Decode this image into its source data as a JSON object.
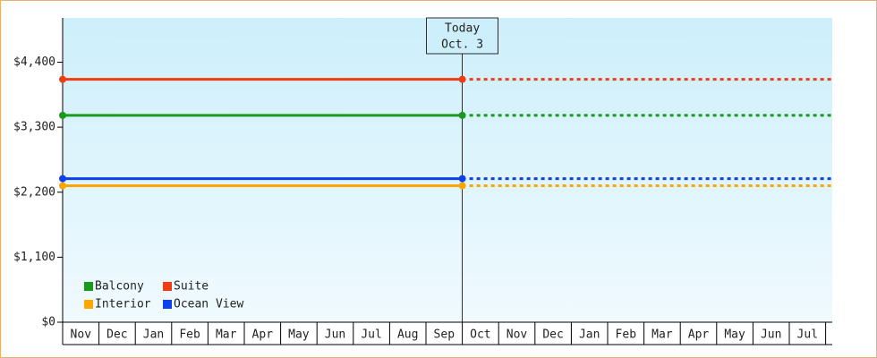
{
  "chart_data": {
    "type": "line",
    "categories": [
      "Nov",
      "Dec",
      "Jan",
      "Feb",
      "Mar",
      "Apr",
      "May",
      "Jun",
      "Jul",
      "Aug",
      "Sep",
      "Oct",
      "Nov",
      "Dec",
      "Jan",
      "Feb",
      "Mar",
      "Apr",
      "May",
      "Jun",
      "Jul"
    ],
    "series": [
      {
        "name": "Balcony",
        "color": "#1a9a1a",
        "value": 3500
      },
      {
        "name": "Suite",
        "color": "#f03c10",
        "value": 4110
      },
      {
        "name": "Interior",
        "color": "#ffa500",
        "value": 2310
      },
      {
        "name": "Ocean View",
        "color": "#0a40f0",
        "value": 2430
      }
    ],
    "annotation": {
      "lines": [
        "Today",
        "Oct. 3"
      ],
      "at_category": 11
    },
    "ylim": [
      0,
      5150
    ],
    "yticks": [
      {
        "value": 0,
        "label": "$0"
      },
      {
        "value": 1100,
        "label": "$1,100"
      },
      {
        "value": 2200,
        "label": "$2,200"
      },
      {
        "value": 3300,
        "label": "$3,300"
      },
      {
        "value": 4400,
        "label": "$4,400"
      }
    ],
    "legend": "bottom-left"
  }
}
